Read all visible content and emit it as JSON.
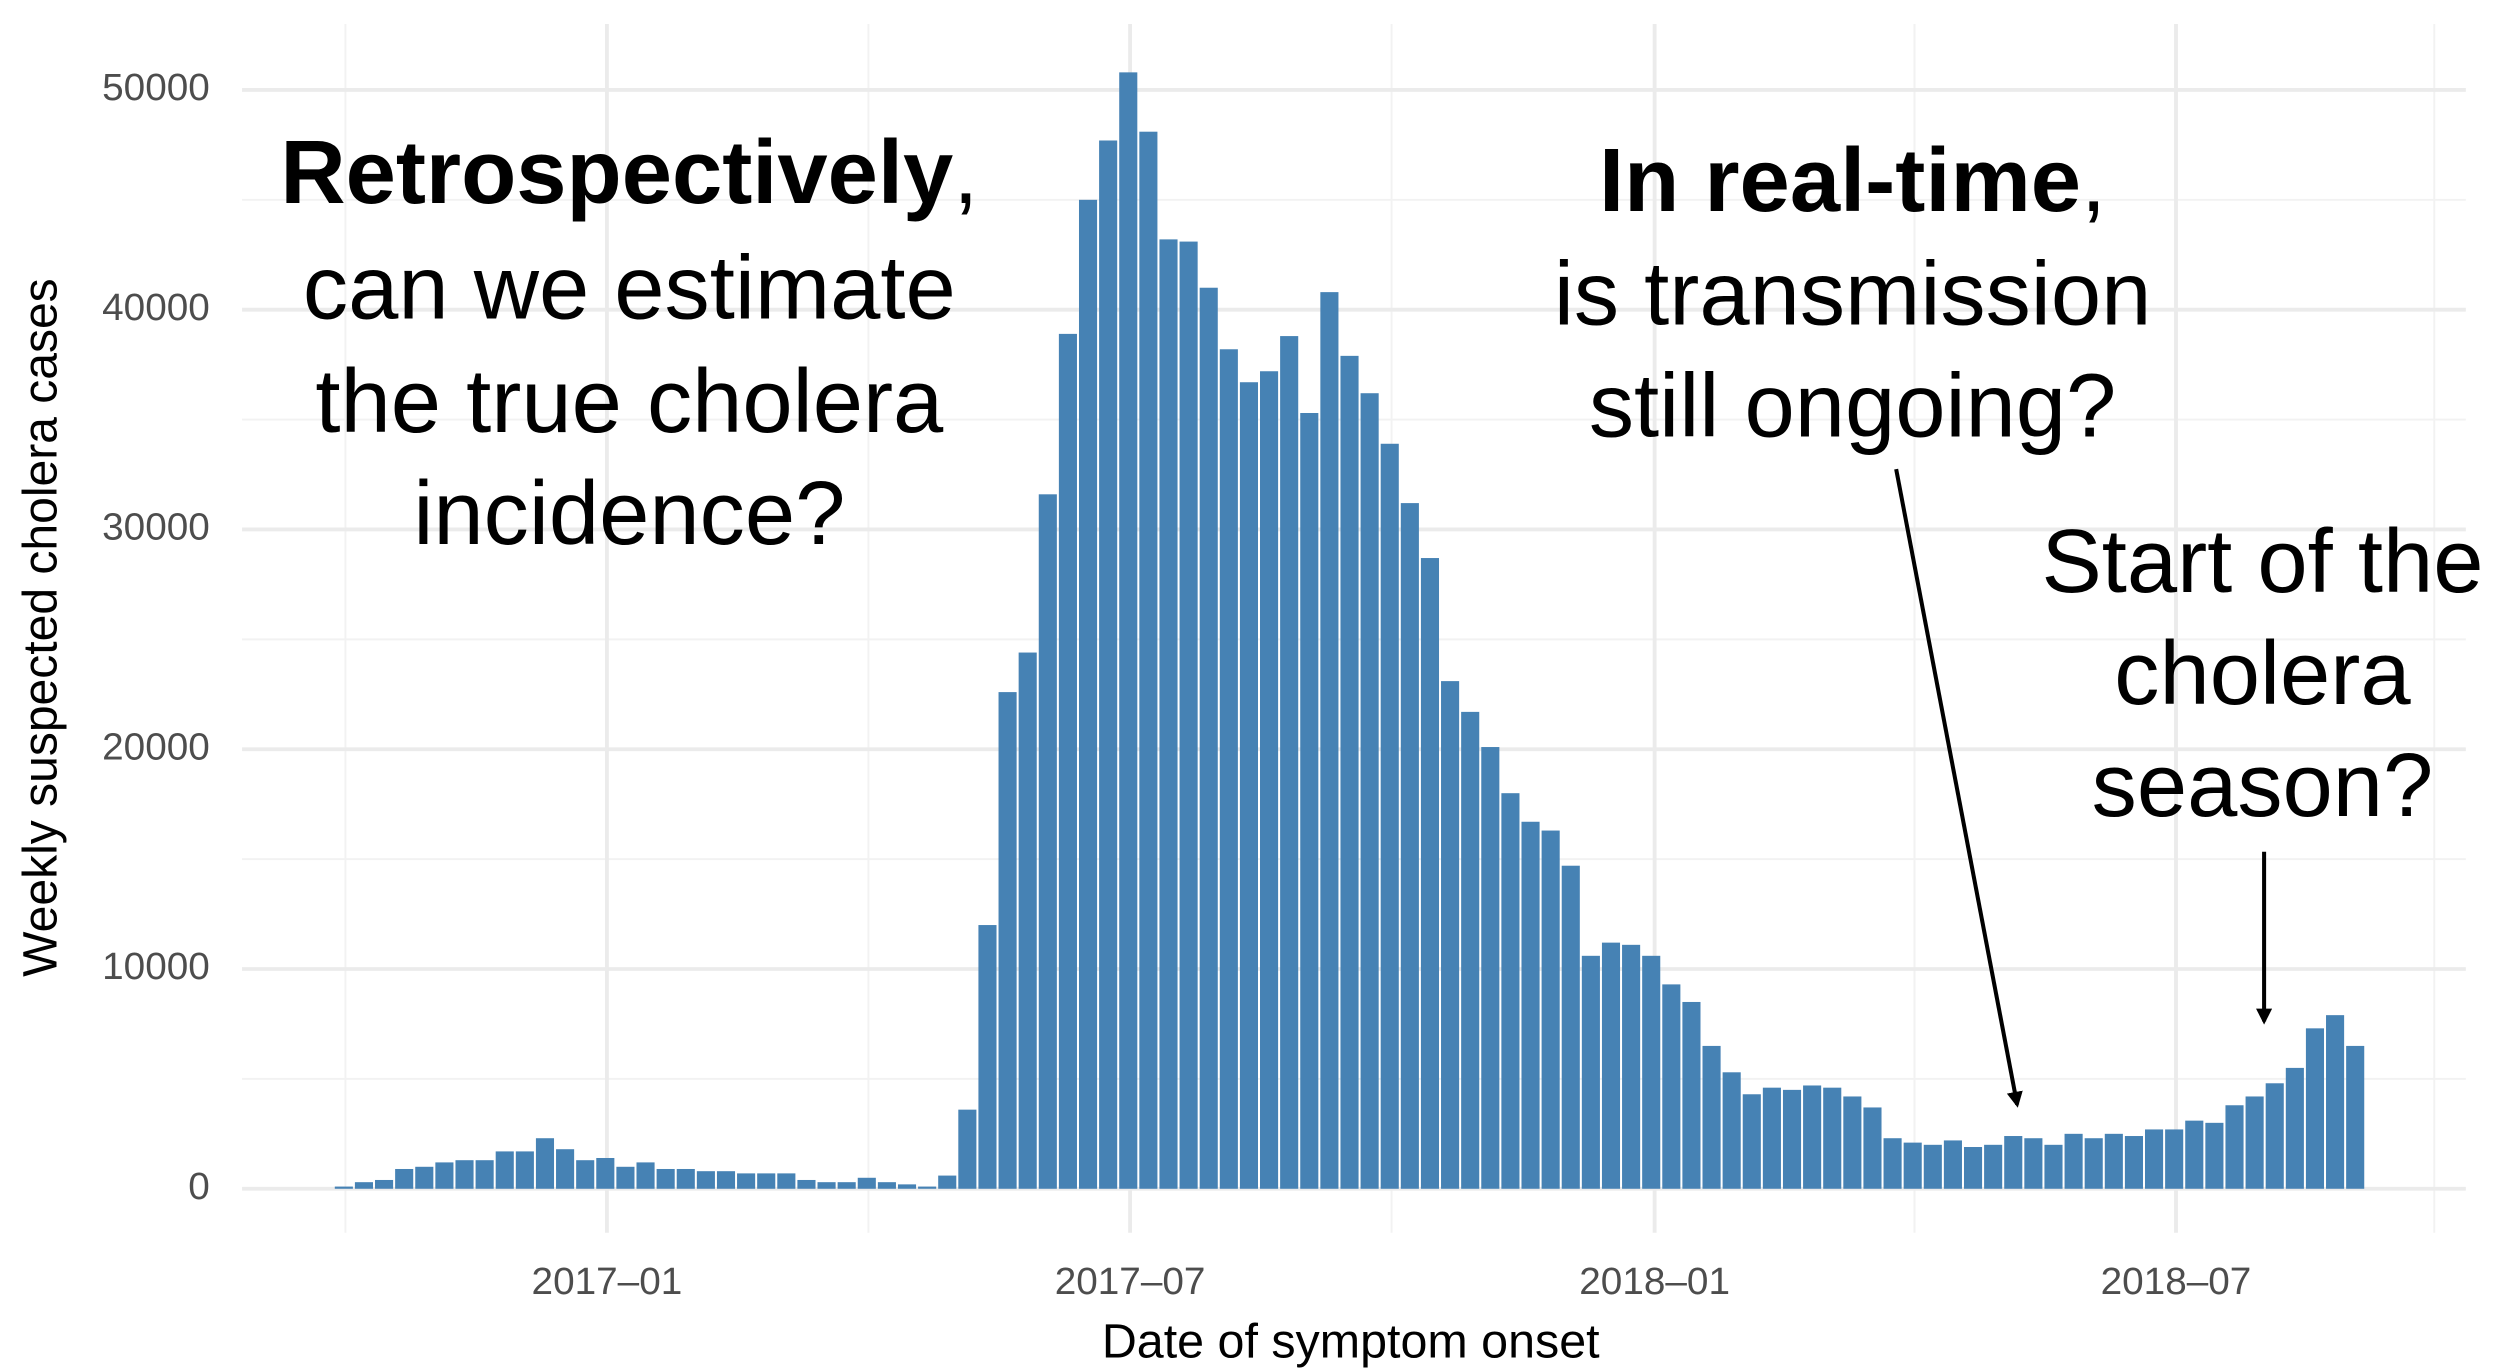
{
  "chart_data": {
    "type": "bar",
    "x_label": "Date of symptom onset",
    "y_label": "Weekly suspected cholera cases",
    "color": "#4682b4",
    "categories": [
      null,
      null,
      null,
      null,
      null,
      null,
      null,
      null,
      null,
      null,
      null,
      null,
      null,
      null,
      null,
      null,
      null,
      null,
      null,
      null,
      null,
      null,
      null,
      null,
      null,
      null,
      null,
      null,
      null,
      null,
      null,
      null,
      null,
      null,
      null,
      null,
      null,
      null,
      null,
      null,
      null,
      null,
      null,
      null,
      null,
      null,
      null,
      null,
      null,
      null,
      null,
      null,
      null,
      null,
      null,
      null,
      null,
      null,
      null,
      null,
      null,
      null,
      null,
      null,
      null,
      null,
      null,
      null,
      null,
      null,
      null,
      null,
      null,
      null,
      null,
      null,
      null,
      null,
      null,
      null,
      null,
      null,
      null,
      null,
      null,
      null,
      null,
      null,
      null,
      null,
      null,
      null,
      null,
      null,
      null,
      null,
      null,
      null,
      null,
      null,
      null
    ],
    "values": [
      100,
      300,
      400,
      900,
      1000,
      1200,
      1300,
      1300,
      1700,
      1700,
      2300,
      1800,
      1300,
      1400,
      1000,
      1200,
      900,
      900,
      800,
      800,
      700,
      700,
      700,
      400,
      300,
      300,
      500,
      300,
      200,
      100,
      600,
      3600,
      12000,
      22600,
      24400,
      31600,
      38900,
      45000,
      47700,
      50800,
      48100,
      43200,
      43100,
      41000,
      38200,
      36700,
      37200,
      38800,
      35300,
      40800,
      37900,
      36200,
      33900,
      31200,
      28700,
      23100,
      21700,
      20100,
      18000,
      16700,
      16300,
      14700,
      10600,
      11200,
      11100,
      10600,
      9300,
      8500,
      6500,
      5300,
      4300,
      4600,
      4500,
      4700,
      4600,
      4200,
      3700,
      2300,
      2100,
      2000,
      2200,
      1900,
      2000,
      2400,
      2300,
      2000,
      2500,
      2300,
      2500,
      2400,
      2700,
      2700,
      3100,
      3000,
      3800,
      4200,
      4800,
      5500,
      7300,
      7900,
      6500
    ],
    "xlim": [
      -5.06,
      105.5
    ],
    "xticks": [
      {
        "value": 13.08,
        "label": "2017–01"
      },
      {
        "value": 39.09,
        "label": "2017–07"
      },
      {
        "value": 65.17,
        "label": "2018–01"
      },
      {
        "value": 91.09,
        "label": "2018–07"
      }
    ],
    "xminorticks": [
      0.08,
      26.08,
      52.09,
      78.09,
      103.93
    ],
    "ylim": [
      -2000,
      53000
    ],
    "yticks": [
      0,
      10000,
      20000,
      30000,
      40000,
      50000
    ],
    "yminorticks": [
      5000,
      15000,
      25000,
      35000,
      45000
    ],
    "grid": true,
    "annotations": [
      {
        "bold": "Retrospectively",
        "rest": ",",
        "lines": [
          "can we estimate",
          "the true cholera",
          "incidence?"
        ]
      },
      {
        "bold": "In real-time",
        "rest": ",",
        "lines": [
          "is transmission",
          "still ongoing?"
        ]
      },
      {
        "lines": [
          "Start of the",
          "cholera",
          "season?"
        ]
      }
    ]
  }
}
